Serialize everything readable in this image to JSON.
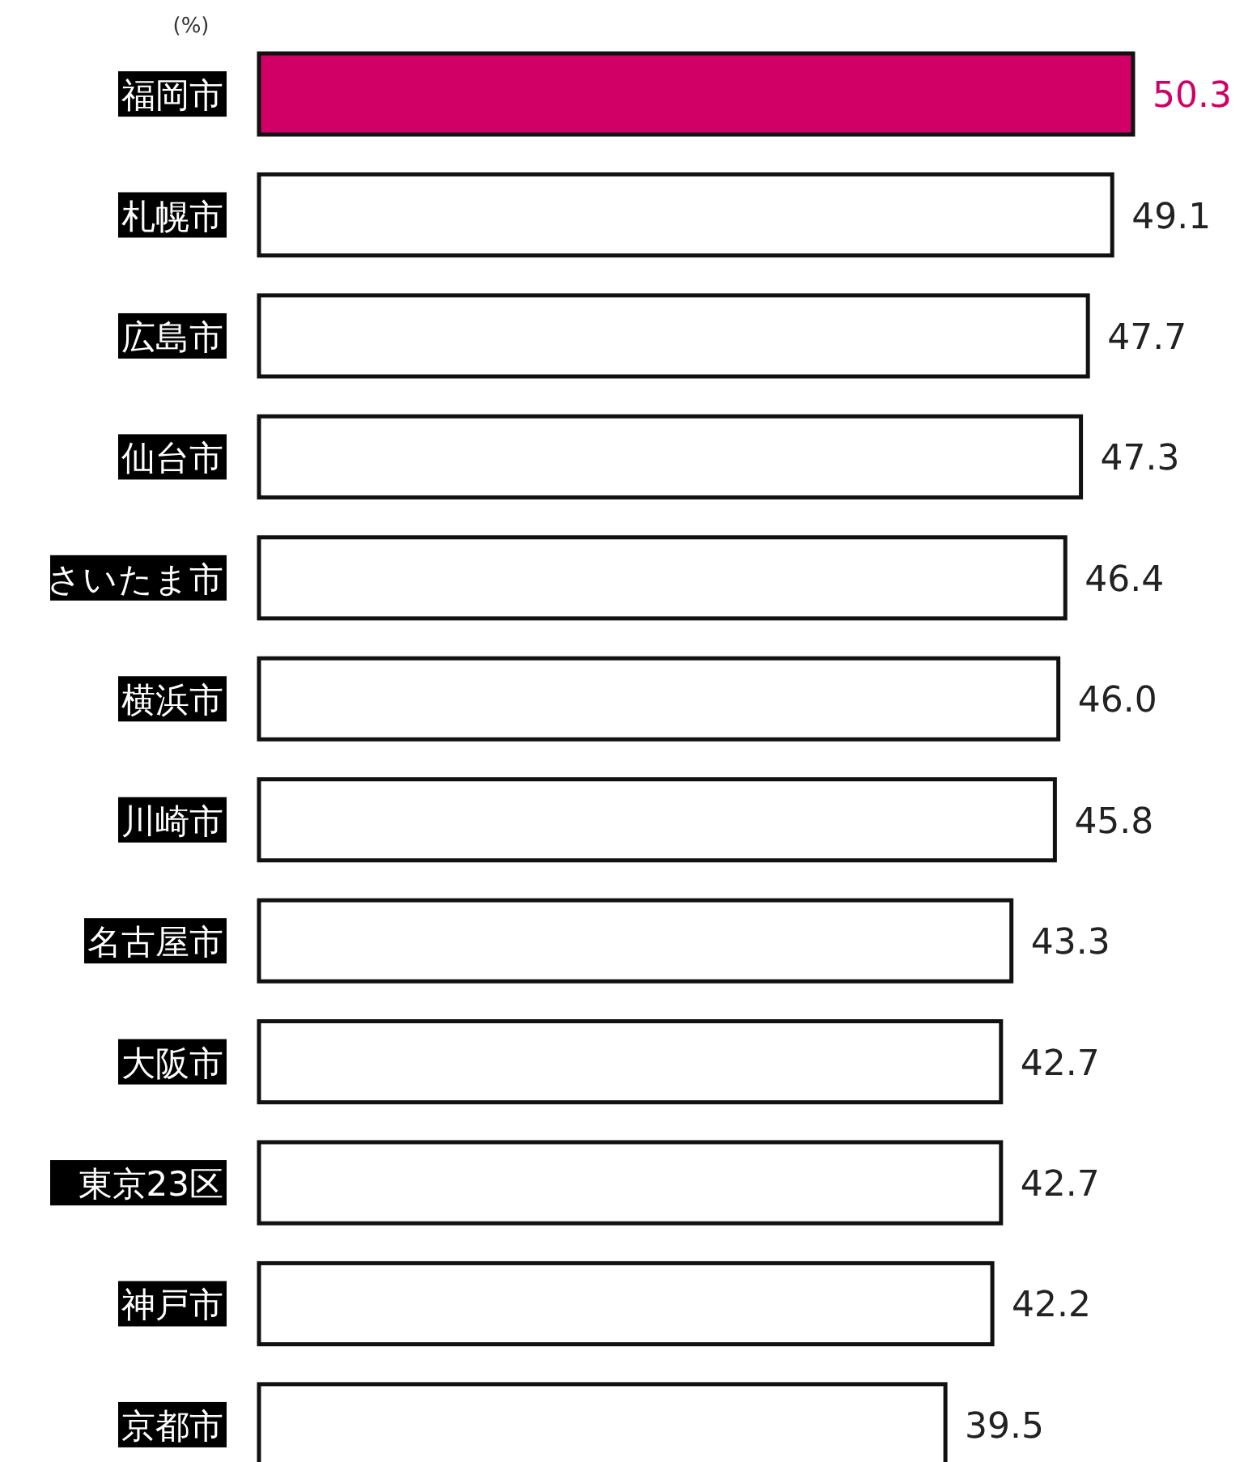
{
  "chart_data": {
    "type": "bar",
    "orientation": "horizontal",
    "categories": [
      "福岡市",
      "札幌市",
      "広島市",
      "仙台市",
      "さいたま市",
      "横浜市",
      "川崎市",
      "名古屋市",
      "大阪市",
      "東京23区",
      "神戸市",
      "京都市"
    ],
    "values": [
      50.3,
      49.1,
      47.7,
      47.3,
      46.4,
      46.0,
      45.8,
      43.3,
      42.7,
      42.7,
      42.2,
      39.5
    ],
    "value_labels": [
      "50.3",
      "49.1",
      "47.7",
      "47.3",
      "46.4",
      "46.0",
      "45.8",
      "43.3",
      "42.7",
      "42.7",
      "42.2",
      "39.5"
    ],
    "colors": [
      "#d10067",
      "#ffffff",
      "#ffffff",
      "#ffffff",
      "#ffffff",
      "#ffffff",
      "#ffffff",
      "#ffffff",
      "#ffffff",
      "#ffffff",
      "#ffffff",
      "#ffffff"
    ],
    "annotations": [
      "(%)"
    ]
  }
}
